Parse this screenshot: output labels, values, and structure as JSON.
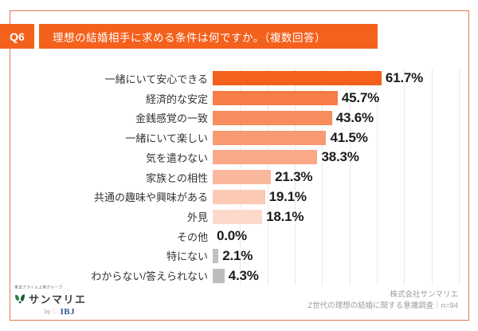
{
  "header": {
    "badge": "Q6",
    "title": "理想の結婚相手に求める条件は何ですか。（複数回答）"
  },
  "chart_data": {
    "type": "bar",
    "orientation": "horizontal",
    "title": "理想の結婚相手に求める条件は何ですか。（複数回答）",
    "categories": [
      "一緒にいて安心できる",
      "経済的な安定",
      "金銭感覚の一致",
      "一緒にいて楽しい",
      "気を遣わない",
      "家族との相性",
      "共通の趣味や興味がある",
      "外見",
      "その他",
      "特にない",
      "わからない/答えられない"
    ],
    "values": [
      61.7,
      45.7,
      43.6,
      41.5,
      38.3,
      21.3,
      19.1,
      18.1,
      0.0,
      2.1,
      4.3
    ],
    "value_labels": [
      "61.7%",
      "45.7%",
      "43.6%",
      "41.5%",
      "38.3%",
      "21.3%",
      "19.1%",
      "18.1%",
      "0.0%",
      "2.1%",
      "4.3%"
    ],
    "bar_colors": [
      "#F4611C",
      "#F67C48",
      "#F78D5F",
      "#F89B73",
      "#F9A988",
      "#FAB89D",
      "#FBC9B4",
      "#FCDACB",
      "#C1C1C1",
      "#C1C1C1",
      "#BDBDBD"
    ],
    "axis_max": 90,
    "gridline_step": 10,
    "grid": true,
    "legend": false,
    "xlabel": "",
    "ylabel": "",
    "unit": "%"
  },
  "footer": {
    "logo_top": "東証プライム上場グループ",
    "logo_name": "サンマリエ",
    "logo_by_prefix": "by",
    "logo_ibj": "IBJ",
    "company": "株式会社サンマリエ",
    "survey": "Z世代の理想の結婚に関する意識調査｜n=94"
  },
  "colors": {
    "primary": "#F4611C",
    "card_border": "#DD7A50",
    "gridline": "#EAEAEA",
    "gray_bar": "#C1C1C1",
    "value_text": "#1C1C1C",
    "category_text": "#333333",
    "credit_text": "#9B9B9B",
    "ibj_blue": "#2E5795",
    "leaf_green": "#2E7D46"
  }
}
